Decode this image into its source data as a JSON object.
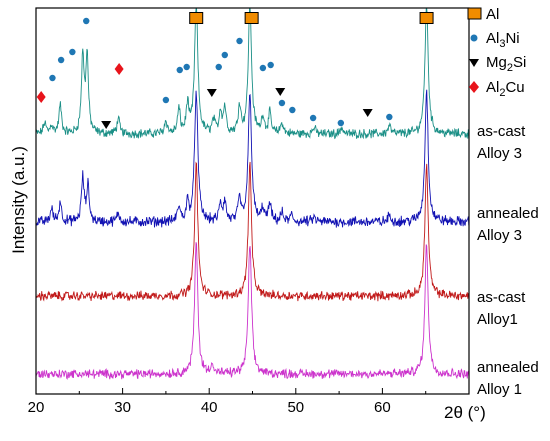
{
  "chart_data": {
    "type": "line",
    "title": "",
    "xlabel": "2θ (°)",
    "ylabel": "Intensity (a.u.)",
    "xlim": [
      20,
      70
    ],
    "xticks": [
      20,
      30,
      40,
      50,
      60
    ],
    "yticks_shown": false,
    "grid": false,
    "legend_position": "top-right",
    "legend": [
      {
        "label": "Al",
        "marker": "square",
        "color": "#f08c00"
      },
      {
        "label": "Al3Ni",
        "marker": "circle",
        "color": "#1f77b4"
      },
      {
        "label": "Mg2Si",
        "marker": "triangle-down",
        "color": "#000000"
      },
      {
        "label": "Al2Cu",
        "marker": "diamond",
        "color": "#e8141b"
      }
    ],
    "series": [
      {
        "name": "as-cast Alloy 3",
        "color": "#1a8f86",
        "baseline": 0.8,
        "peaks": [
          [
            21.0,
            0.5
          ],
          [
            21.8,
            0.4
          ],
          [
            22.8,
            1.3
          ],
          [
            25.4,
            3.5
          ],
          [
            25.9,
            3.5
          ],
          [
            29.5,
            0.7
          ],
          [
            35.0,
            0.6
          ],
          [
            36.5,
            1.1
          ],
          [
            37.5,
            1.3
          ],
          [
            38.5,
            6.0
          ],
          [
            40.5,
            0.6
          ],
          [
            41.3,
            1.0
          ],
          [
            41.8,
            1.2
          ],
          [
            43.5,
            1.3
          ],
          [
            44.7,
            6.0
          ],
          [
            46.2,
            0.8
          ],
          [
            47.0,
            0.9
          ],
          [
            48.4,
            0.5
          ],
          [
            52.1,
            0.3
          ],
          [
            55.3,
            0.3
          ],
          [
            60.8,
            0.4
          ],
          [
            65.1,
            6.0
          ]
        ]
      },
      {
        "name": "annealed Alloy 3",
        "color": "#1212b3",
        "baseline": 0.55,
        "peaks": [
          [
            21.8,
            0.6
          ],
          [
            22.8,
            0.9
          ],
          [
            25.4,
            2.0
          ],
          [
            26.0,
            1.6
          ],
          [
            29.5,
            0.4
          ],
          [
            36.5,
            0.7
          ],
          [
            37.5,
            0.8
          ],
          [
            38.5,
            6.0
          ],
          [
            41.3,
            0.8
          ],
          [
            41.8,
            0.9
          ],
          [
            43.5,
            1.0
          ],
          [
            44.7,
            6.0
          ],
          [
            46.2,
            0.6
          ],
          [
            47.0,
            0.8
          ],
          [
            48.4,
            0.4
          ],
          [
            49.5,
            0.3
          ],
          [
            52.1,
            0.2
          ],
          [
            60.8,
            0.3
          ],
          [
            65.1,
            6.0
          ]
        ]
      },
      {
        "name": "as-cast Alloy1",
        "color": "#c11a1a",
        "baseline": 0.3,
        "peaks": [
          [
            38.5,
            6.0
          ],
          [
            44.7,
            6.0
          ],
          [
            65.1,
            6.0
          ]
        ]
      },
      {
        "name": "annealed Alloy 1",
        "color": "#cc33cc",
        "baseline": 0.05,
        "peaks": [
          [
            38.5,
            6.0
          ],
          [
            40.3,
            0.45
          ],
          [
            44.7,
            6.0
          ],
          [
            65.1,
            6.0
          ]
        ]
      }
    ],
    "phase_markers": [
      {
        "phase": "Al",
        "x": [
          38.5,
          44.9,
          65.1
        ]
      },
      {
        "phase": "Al3Ni",
        "x": [
          21.9,
          22.9,
          24.2,
          25.8,
          35.0,
          36.6,
          37.4,
          41.1,
          41.8,
          43.5,
          46.2,
          47.1,
          48.4,
          49.6,
          52.0,
          55.2,
          60.8
        ]
      },
      {
        "phase": "Mg2Si",
        "x": [
          28.1,
          40.3,
          48.2,
          58.3
        ]
      },
      {
        "phase": "Al2Cu",
        "x": [
          20.6,
          29.6
        ]
      }
    ]
  },
  "labels": {
    "xlabel_prefix": "2θ",
    "xlabel_unit": " (°)",
    "ylabel": "Intensity (a.u.)",
    "series_label_lines": [
      [
        "as-cast",
        "Alloy 3"
      ],
      [
        "annealed",
        "Alloy 3"
      ],
      [
        "as-cast",
        "Alloy1"
      ],
      [
        "annealed",
        "Alloy 1"
      ]
    ]
  },
  "legend_labels": {
    "al": "Al",
    "al3ni_prefix": "Al",
    "al3ni_sub": "3",
    "al3ni_suffix": "Ni",
    "mg2si_prefix": "Mg",
    "mg2si_sub": "2",
    "mg2si_suffix": "Si",
    "al2cu_prefix": "Al",
    "al2cu_sub": "2",
    "al2cu_suffix": "Cu"
  }
}
